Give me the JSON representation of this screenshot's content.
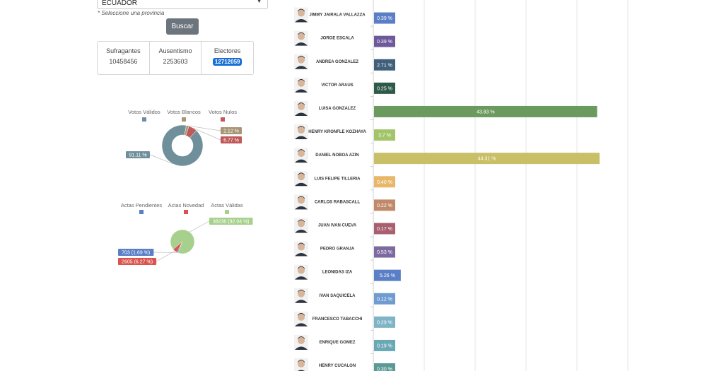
{
  "filters": {
    "province_value": "ECUADOR",
    "province_hint": "* Seleccione una provincia",
    "search_label": "Buscar"
  },
  "stats": {
    "sufragantes_label": "Sufragantes",
    "sufragantes_value": "10458456",
    "ausentismo_label": "Ausentismo",
    "ausentismo_value": "2253603",
    "electores_label": "Electores",
    "electores_value": "12712059"
  },
  "colors": {
    "validos": "#6f8f9b",
    "blancos": "#a89574",
    "nulos": "#c05a5a",
    "pendientes": "#5b7fc7",
    "novedad": "#d9534f",
    "actas_validas": "#a8d08d"
  },
  "chart_data": [
    {
      "type": "pie",
      "variant": "donut",
      "legend_placement": "top",
      "categories": [
        "Votos Válidos",
        "Votos Blancos",
        "Votos Nulos"
      ],
      "values": [
        91.11,
        2.12,
        6.77
      ],
      "labels": [
        "91.11 %",
        "2.12 %",
        "6.77 %"
      ]
    },
    {
      "type": "pie",
      "legend_placement": "top",
      "categories": [
        "Actas Pendientes",
        "Actas Novedad",
        "Actas Válidas"
      ],
      "values": [
        1.69,
        6.27,
        92.04
      ],
      "labels": [
        "703 (1.69 %)",
        "2605 (6.27 %)",
        "38236 (92.04 %)"
      ]
    },
    {
      "type": "bar",
      "orientation": "horizontal",
      "xlim": [
        0,
        50
      ],
      "grid": true,
      "categories": [
        "JIMMY JAIRALA VALLAZZA",
        "JORGE ESCALA",
        "ANDREA GONZALEZ",
        "VICTOR ARAUS",
        "LUISA GONZALEZ",
        "HENRY KRONFLE KOZHAYA",
        "DANIEL NOBOA AZIN",
        "LUIS FELIPE TILLERIA",
        "CARLOS RABASCALL",
        "JUAN IVAN CUEVA",
        "PEDRO GRANJA",
        "LEONIDAS IZA",
        "IVAN SAQUICELA",
        "FRANCESCO TABACCHI",
        "ENRIQUE GOMEZ",
        "HENRY CUCALON"
      ],
      "values": [
        0.39,
        0.39,
        2.71,
        0.25,
        43.83,
        3.7,
        44.31,
        0.4,
        0.22,
        0.17,
        0.53,
        5.26,
        0.12,
        0.29,
        0.19,
        0.3
      ],
      "labels": [
        "0.39 %",
        "0.39 %",
        "2.71 %",
        "0.25 %",
        "43.83 %",
        "3.7 %",
        "44.31 %",
        "0.40 %",
        "0.22 %",
        "0.17 %",
        "0.53 %",
        "5.26 %",
        "0.12 %",
        "0.29 %",
        "0.19 %",
        "0.30 %"
      ],
      "colors": [
        "#5b7fc7",
        "#6e5a9b",
        "#3f5f7a",
        "#2f5a4a",
        "#6b9a5e",
        "#a3c56a",
        "#c8bf66",
        "#e8b86a",
        "#c08a6a",
        "#a86070",
        "#7d6aa0",
        "#5b7fc7",
        "#6f9bd0",
        "#7fb3c6",
        "#6aa8b6",
        "#5a9a94"
      ]
    }
  ]
}
